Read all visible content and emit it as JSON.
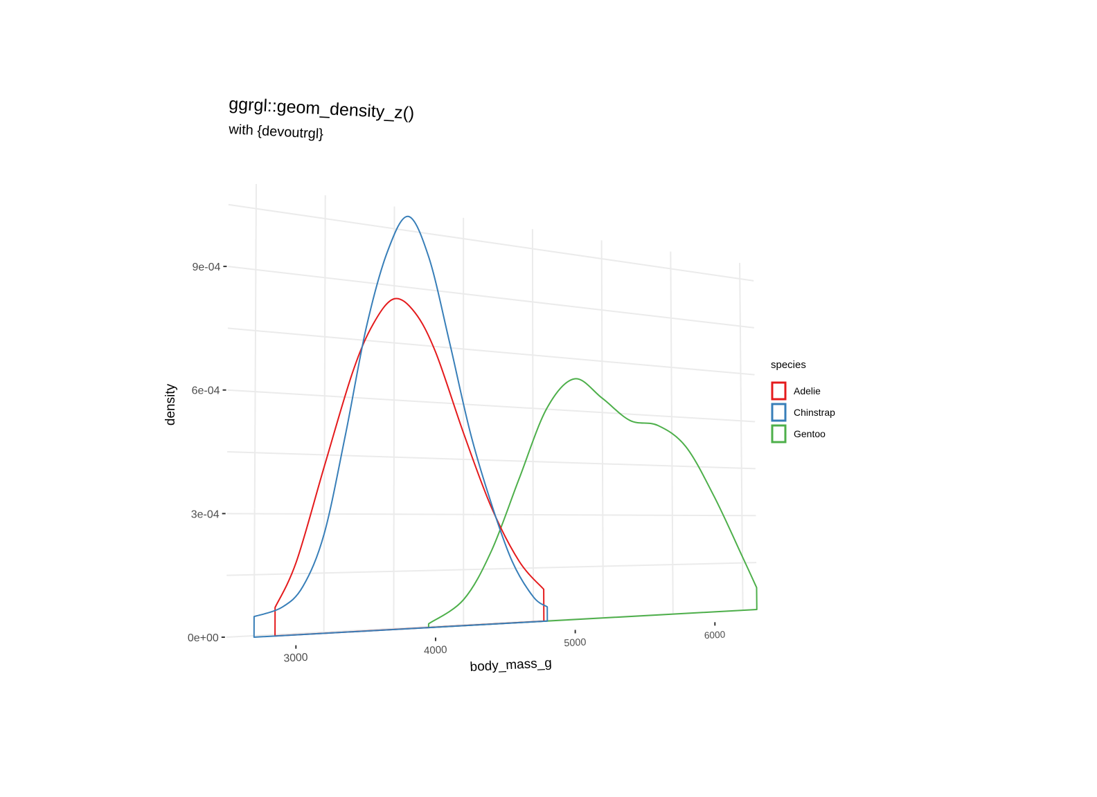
{
  "chart_data": {
    "type": "area",
    "title": "ggrgl::geom_density_z()",
    "subtitle": "with {devoutrgl}",
    "xlabel": "body_mass_g",
    "ylabel": "density",
    "xlim": [
      2700,
      6300
    ],
    "ylim": [
      0,
      0.0011
    ],
    "x_ticks": [
      3000,
      4000,
      5000,
      6000
    ],
    "x_tick_labels": [
      "3000",
      "4000",
      "5000",
      "6000"
    ],
    "y_ticks": [
      0,
      0.0003,
      0.0006,
      0.0009
    ],
    "y_tick_labels": [
      "0e+00",
      "3e-04",
      "6e-04",
      "9e-04"
    ],
    "grid": true,
    "legend": {
      "title": "species",
      "position": "right",
      "entries": [
        {
          "label": "Adelie",
          "color": "#e41a1c"
        },
        {
          "label": "Chinstrap",
          "color": "#377eb8"
        },
        {
          "label": "Gentoo",
          "color": "#4daf4a"
        }
      ]
    },
    "series": [
      {
        "name": "Adelie",
        "color": "#e41a1c",
        "x": [
          2850,
          3000,
          3200,
          3400,
          3550,
          3700,
          3850,
          4000,
          4200,
          4400,
          4600,
          4775
        ],
        "y": [
          7e-05,
          0.00018,
          0.00042,
          0.00066,
          0.00079,
          0.00086,
          0.00083,
          0.00073,
          0.00052,
          0.00032,
          0.00017,
          9e-05
        ]
      },
      {
        "name": "Chinstrap",
        "color": "#377eb8",
        "x": [
          2700,
          2900,
          3050,
          3200,
          3350,
          3500,
          3650,
          3800,
          3950,
          4100,
          4250,
          4400,
          4550,
          4700,
          4800
        ],
        "y": [
          5e-05,
          7e-05,
          0.00012,
          0.00025,
          0.0005,
          0.00078,
          0.00098,
          0.00108,
          0.00098,
          0.00076,
          0.00052,
          0.00033,
          0.00017,
          7e-05,
          4e-05
        ]
      },
      {
        "name": "Gentoo",
        "color": "#4daf4a",
        "x": [
          3950,
          4200,
          4400,
          4600,
          4800,
          5000,
          5200,
          5400,
          5600,
          5800,
          6000,
          6200,
          6300
        ],
        "y": [
          1e-05,
          7e-05,
          0.0002,
          0.0004,
          0.0006,
          0.00069,
          0.00064,
          0.00058,
          0.00057,
          0.00051,
          0.00036,
          0.00017,
          7e-05
        ]
      }
    ]
  }
}
